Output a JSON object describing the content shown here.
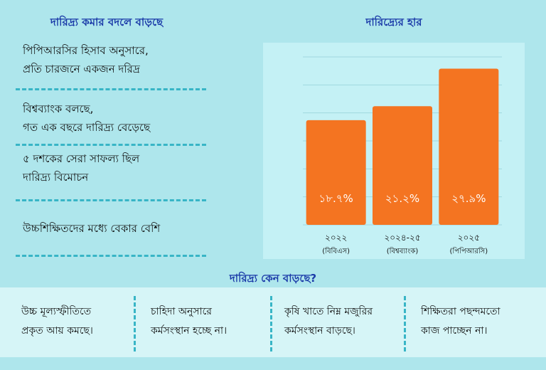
{
  "left": {
    "title": "দারিদ্র্য কমার বদলে বাড়ছে",
    "points": [
      {
        "line1": "পিপিআরসির হিসাব অনুসারে,",
        "line2": "প্রতি চারজনে একজন দরিদ্র"
      },
      {
        "line1": "বিশ্বব্যাংক বলছে,",
        "line2": "গত এক বছরে দারিদ্র্য বেড়েছে"
      },
      {
        "line1": "৫ দশকের সেরা সাফল্য ছিল",
        "line2": "দারিদ্র্য বিমোচন"
      },
      {
        "line1": "উচ্চশিক্ষিতদের মধ্যে বেকার বেশি",
        "line2": ""
      }
    ]
  },
  "chart_title": "দারিদ্র্যের হার",
  "chart_data": {
    "type": "bar",
    "categories": [
      "২০২২",
      "২০২৪-২৫",
      "২০২৫"
    ],
    "sources": [
      "(বিবিএস)",
      "(বিশ্বব্যাংক)",
      "(পিপিআরসি)"
    ],
    "values": [
      18.7,
      21.2,
      27.9
    ],
    "value_labels": [
      "১৮.৭%",
      "২১.২%",
      "২৭.৯%"
    ],
    "ylim": [
      0,
      30
    ],
    "bar_color": "#f47421",
    "grid": true
  },
  "bottom": {
    "title": "দারিদ্র্য কেন বাড়ছে?",
    "causes": [
      {
        "line1": "উচ্চ মূল্যস্ফীতিতে",
        "line2": "প্রকৃত আয় কমছে।"
      },
      {
        "line1": "চাহিদা অনুসারে",
        "line2": "কর্মসংস্থান হচ্ছে না।"
      },
      {
        "line1": "কৃষি খাতে নিম্ন মজুরির",
        "line2": "কর্মসংস্থান বাড়ছে।"
      },
      {
        "line1": "শিক্ষিতরা পছন্দমতো",
        "line2": "কাজ পাচ্ছেন না।"
      }
    ]
  }
}
